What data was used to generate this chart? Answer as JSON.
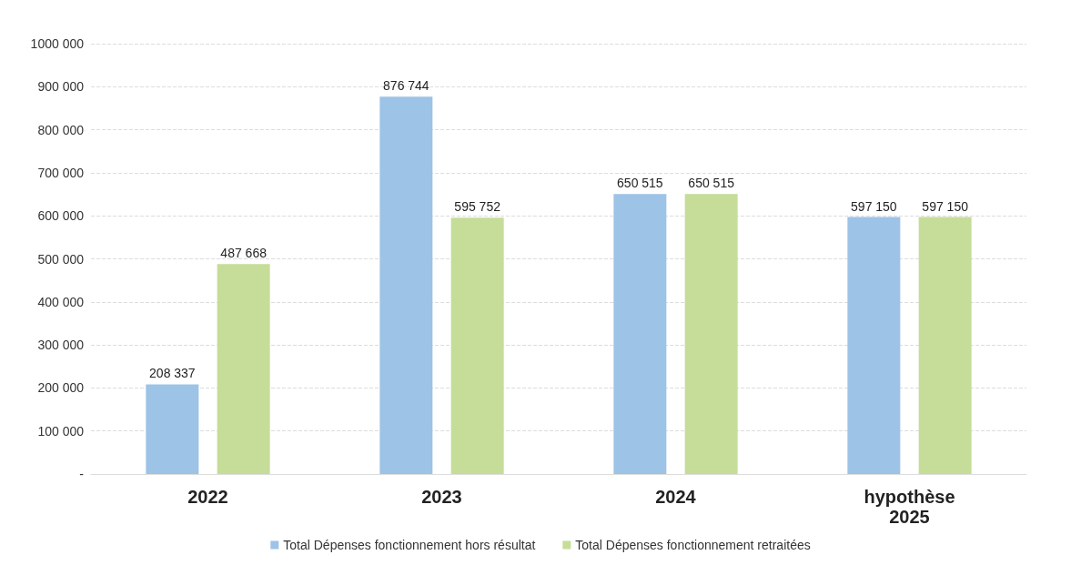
{
  "chart_data": {
    "type": "bar",
    "categories": [
      "2022",
      "2023",
      "2024",
      "hypothèse\n2025"
    ],
    "series": [
      {
        "name": "Total Dépenses fonctionnement hors résultat",
        "color": "#9dc3e6",
        "values": [
          208337,
          876744,
          650515,
          597150
        ],
        "value_labels": [
          "208 337",
          "876 744",
          "650 515",
          "597 150"
        ]
      },
      {
        "name": "Total Dépenses fonctionnement retraitées",
        "color": "#c5dd98",
        "values": [
          487668,
          595752,
          650515,
          597150
        ],
        "value_labels": [
          "487 668",
          "595 752",
          "650 515",
          "597 150"
        ]
      }
    ],
    "ylim": [
      0,
      1000000
    ],
    "yticks": [
      {
        "value": 0,
        "label": "-"
      },
      {
        "value": 100000,
        "label": "100 000"
      },
      {
        "value": 200000,
        "label": "200 000"
      },
      {
        "value": 300000,
        "label": "300 000"
      },
      {
        "value": 400000,
        "label": "400 000"
      },
      {
        "value": 500000,
        "label": "500 000"
      },
      {
        "value": 600000,
        "label": "600 000"
      },
      {
        "value": 700000,
        "label": "700 000"
      },
      {
        "value": 800000,
        "label": "800 000"
      },
      {
        "value": 900000,
        "label": "900 000"
      },
      {
        "value": 1000000,
        "label": "1000 000"
      }
    ],
    "grid": "y",
    "legend": "bottom"
  }
}
